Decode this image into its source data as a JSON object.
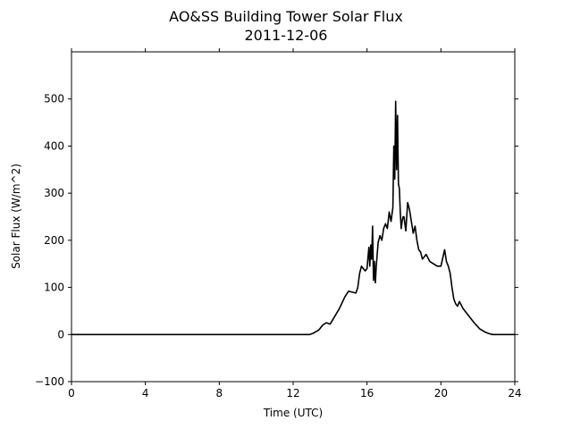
{
  "chart_data": {
    "type": "line",
    "title": "AO&SS Building Tower Solar Flux",
    "subtitle": "2011-12-06",
    "xlabel": "Time (UTC)",
    "ylabel": "Solar Flux (W/m^2)",
    "xlim": [
      0,
      24
    ],
    "ylim": [
      -100,
      600
    ],
    "xticks": [
      0,
      4,
      8,
      12,
      16,
      20,
      24
    ],
    "yticks": [
      -100,
      0,
      100,
      200,
      300,
      400,
      500
    ],
    "ytick_labels": [
      "−100",
      "0",
      "100",
      "200",
      "300",
      "400",
      "500"
    ],
    "grid": false,
    "legend": "none",
    "line_color": "#000000",
    "series": [
      {
        "x": [
          0,
          12.9,
          13.1,
          13.4,
          13.6,
          13.8,
          14.0,
          14.2,
          14.5,
          14.8,
          15.0,
          15.2,
          15.4,
          15.5,
          15.6,
          15.7,
          15.8,
          15.9,
          16.0,
          16.1,
          16.15,
          16.2,
          16.25,
          16.3,
          16.35,
          16.4,
          16.45,
          16.5,
          16.6,
          16.7,
          16.8,
          16.9,
          17.0,
          17.1,
          17.2,
          17.3,
          17.4,
          17.45,
          17.5,
          17.55,
          17.6,
          17.65,
          17.7,
          17.75,
          17.8,
          17.85,
          17.9,
          17.95,
          18.0,
          18.1,
          18.2,
          18.3,
          18.4,
          18.5,
          18.6,
          18.7,
          18.8,
          18.9,
          19.0,
          19.2,
          19.4,
          19.6,
          19.8,
          20.0,
          20.2,
          20.3,
          20.35,
          20.4,
          20.5,
          20.6,
          20.7,
          20.8,
          20.9,
          21.0,
          21.2,
          21.5,
          21.8,
          22.1,
          22.4,
          22.6,
          22.8,
          23.0,
          24.0
        ],
        "y": [
          0,
          0,
          3,
          10,
          20,
          25,
          22,
          35,
          55,
          80,
          92,
          90,
          88,
          100,
          130,
          145,
          140,
          135,
          140,
          185,
          145,
          190,
          160,
          230,
          115,
          155,
          110,
          145,
          195,
          210,
          200,
          225,
          235,
          225,
          260,
          240,
          270,
          400,
          330,
          495,
          350,
          465,
          320,
          310,
          260,
          225,
          240,
          250,
          250,
          220,
          280,
          265,
          240,
          215,
          230,
          200,
          180,
          175,
          160,
          170,
          155,
          150,
          145,
          145,
          180,
          155,
          150,
          145,
          130,
          100,
          75,
          65,
          60,
          70,
          55,
          40,
          25,
          12,
          5,
          2,
          0,
          0,
          0
        ]
      }
    ]
  }
}
